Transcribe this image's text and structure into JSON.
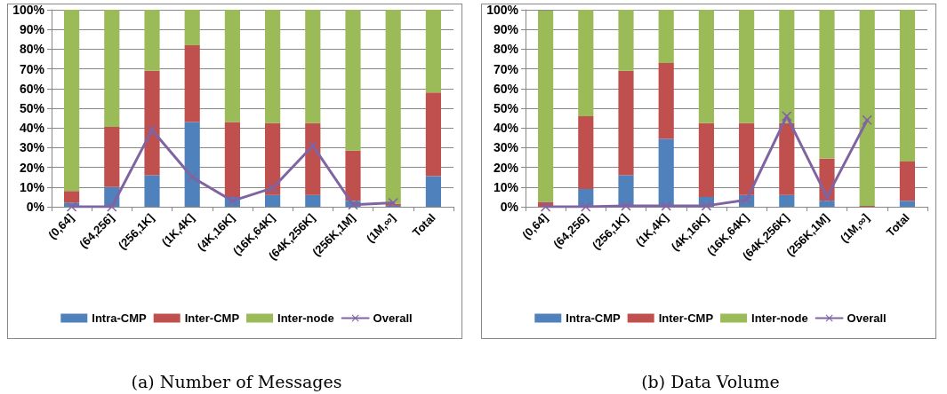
{
  "chart_data": [
    {
      "type": "bar",
      "title": "(a) Number of Messages",
      "stacked": true,
      "grid": "y",
      "legend": "bottom",
      "marker": "cross",
      "categories": [
        "(0,64]",
        "(64,256]",
        "(256,1K]",
        "(1K,4K]",
        "(4K,16K]",
        "(16K,64K]",
        "(64K,256K]",
        "(256K,1M]",
        "(1M,∞]",
        "Total"
      ],
      "ylim": [
        0,
        100
      ],
      "yticks": [
        {
          "value": 0,
          "label": "0%"
        },
        {
          "value": 10,
          "label": "10%"
        },
        {
          "value": 20,
          "label": "20%"
        },
        {
          "value": 30,
          "label": "30%"
        },
        {
          "value": 40,
          "label": "40%"
        },
        {
          "value": 50,
          "label": "50%"
        },
        {
          "value": 60,
          "label": "60%"
        },
        {
          "value": 70,
          "label": "70%"
        },
        {
          "value": 80,
          "label": "80%"
        },
        {
          "value": 90,
          "label": "90%"
        },
        {
          "value": 100,
          "label": "100%"
        }
      ],
      "series": [
        {
          "name": "Intra-CMP",
          "color": "#4f81bd",
          "values": [
            2,
            10,
            16,
            43,
            5,
            6,
            6,
            3,
            0.5,
            15.5
          ]
        },
        {
          "name": "Inter-CMP",
          "color": "#c0504d",
          "values": [
            6,
            30.5,
            53,
            39,
            38,
            36.5,
            36.5,
            25.5,
            1,
            42.5
          ]
        },
        {
          "name": "Inter-node",
          "color": "#9bbb59",
          "values": [
            92,
            59.5,
            31,
            18,
            57,
            57.5,
            57.5,
            71.5,
            98.5,
            42
          ]
        },
        {
          "name": "Overall",
          "type": "line",
          "color": "#8064a2",
          "values": [
            0,
            0,
            39,
            15,
            3,
            9.5,
            31,
            1,
            2,
            null
          ]
        }
      ]
    },
    {
      "type": "bar",
      "title": "(b) Data Volume",
      "stacked": true,
      "grid": "y",
      "legend": "bottom",
      "marker": "cross",
      "categories": [
        "(0,64]",
        "(64,256]",
        "(256,1K]",
        "(1K,4K]",
        "(4K,16K]",
        "(16K,64K]",
        "(64K,256K]",
        "(256K,1M]",
        "(1M,∞]",
        "Total"
      ],
      "ylim": [
        0,
        100
      ],
      "yticks": [
        {
          "value": 0,
          "label": "0%"
        },
        {
          "value": 10,
          "label": "10%"
        },
        {
          "value": 20,
          "label": "20%"
        },
        {
          "value": 30,
          "label": "30%"
        },
        {
          "value": 40,
          "label": "40%"
        },
        {
          "value": 50,
          "label": "50%"
        },
        {
          "value": 60,
          "label": "60%"
        },
        {
          "value": 70,
          "label": "70%"
        },
        {
          "value": 80,
          "label": "80%"
        },
        {
          "value": 90,
          "label": "90%"
        },
        {
          "value": 100,
          "label": "100%"
        }
      ],
      "series": [
        {
          "name": "Intra-CMP",
          "color": "#4f81bd",
          "values": [
            null,
            9,
            16,
            34.5,
            5,
            6,
            6,
            3,
            0,
            3
          ]
        },
        {
          "name": "Inter-CMP",
          "color": "#c0504d",
          "values": [
            2.5,
            37,
            53,
            38.5,
            37.5,
            36.5,
            36.5,
            21.5,
            0.5,
            20
          ]
        },
        {
          "name": "Inter-node",
          "color": "#9bbb59",
          "values": [
            97,
            54,
            31,
            27,
            57.5,
            57.5,
            57.5,
            75.5,
            99.5,
            77
          ]
        },
        {
          "name": "Overall",
          "type": "line",
          "color": "#8064a2",
          "values": [
            0,
            0,
            0.5,
            0.5,
            0.5,
            3.5,
            46,
            5,
            44,
            null
          ]
        }
      ]
    }
  ]
}
